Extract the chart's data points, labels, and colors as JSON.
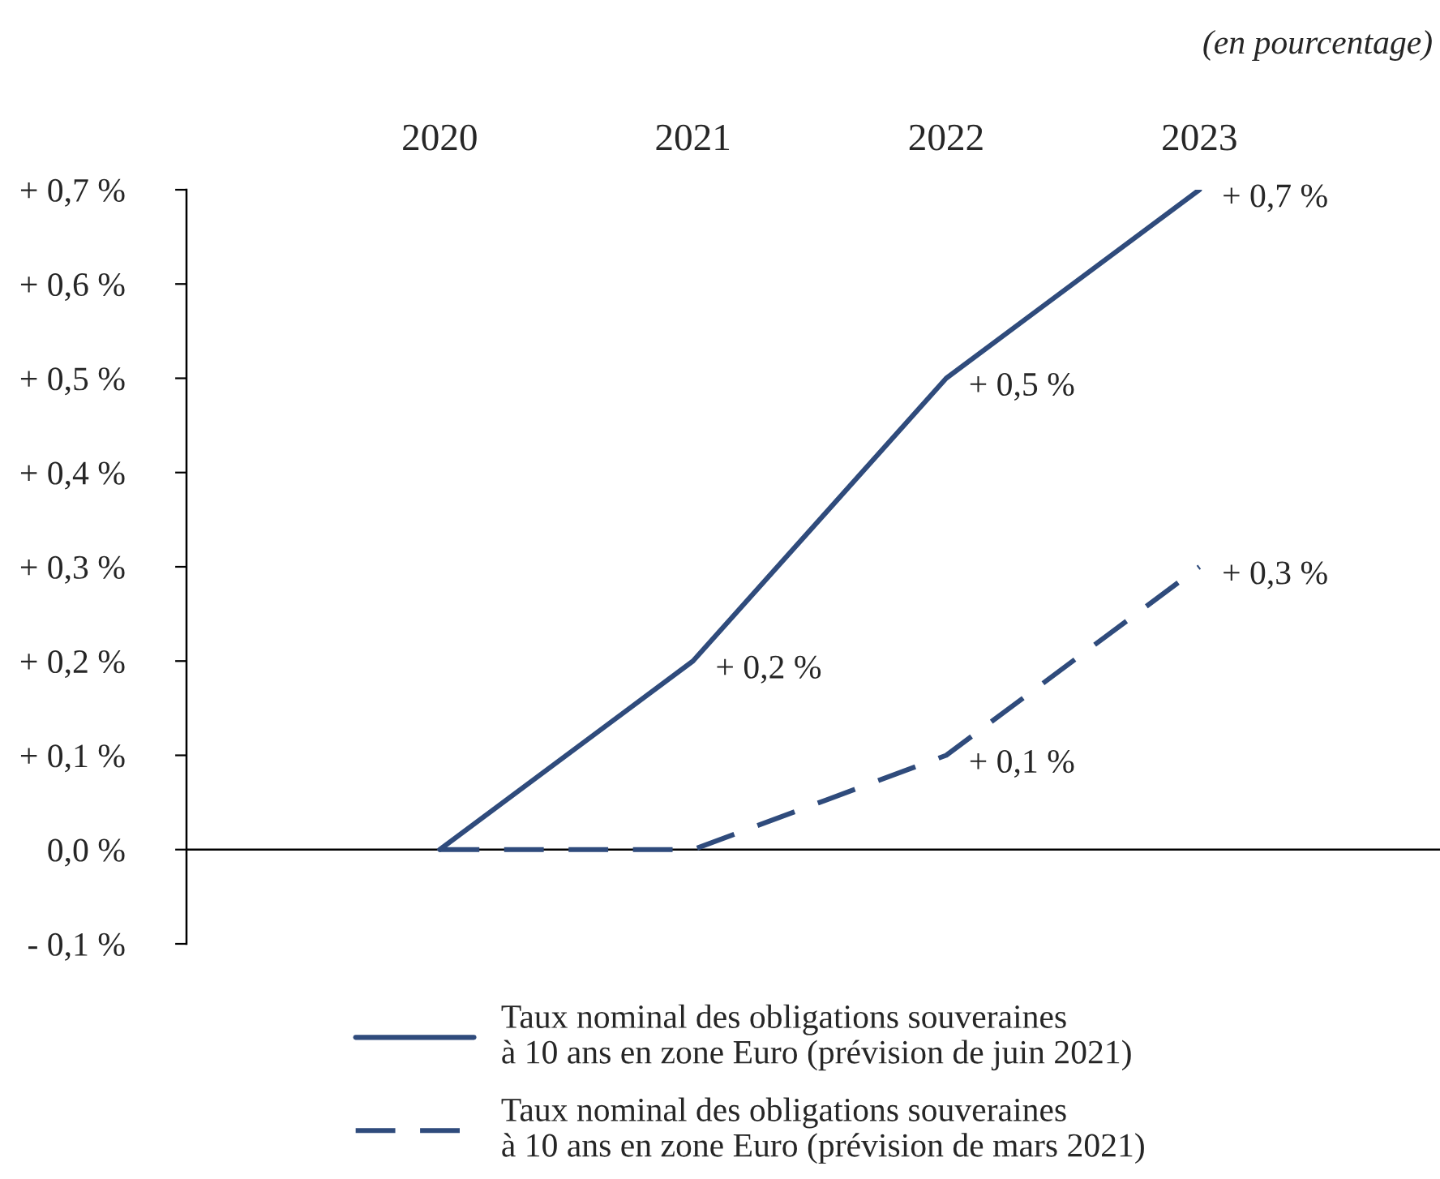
{
  "chart_data": {
    "type": "line",
    "annotations": [
      "(en pourcentage)"
    ],
    "categories": [
      "2020",
      "2021",
      "2022",
      "2023"
    ],
    "series": [
      {
        "name": "Taux nominal des obligations souveraines\nà 10 ans en zone Euro (prévision de juin 2021)",
        "color": "#2f4b7c",
        "values": [
          0,
          0.2,
          0.5,
          0.7
        ],
        "line_style": "solid",
        "value_labels": [
          null,
          "+ 0,2 %",
          "+ 0,5 %",
          "+ 0,7 %"
        ]
      },
      {
        "name": "Taux nominal des obligations souveraines\nà 10 ans en zone Euro (prévision de mars 2021)",
        "color": "#2f4b7c",
        "values": [
          0,
          0,
          0.1,
          0.3
        ],
        "line_style": "dashed",
        "value_labels": [
          null,
          null,
          "+ 0,1 %",
          "+ 0,3 %"
        ]
      }
    ],
    "ylim": [
      -0.1,
      0.7
    ],
    "yticks": [
      {
        "value": -0.1,
        "label": "- 0,1 %"
      },
      {
        "value": 0,
        "label": "0,0 %"
      },
      {
        "value": 0.1,
        "label": "+ 0,1 %"
      },
      {
        "value": 0.2,
        "label": "+ 0,2 %"
      },
      {
        "value": 0.3,
        "label": "+ 0,3 %"
      },
      {
        "value": 0.4,
        "label": "+ 0,4 %"
      },
      {
        "value": 0.5,
        "label": "+ 0,5 %"
      },
      {
        "value": 0.6,
        "label": "+ 0,6 %"
      },
      {
        "value": 0.7,
        "label": "+ 0,7 %"
      }
    ],
    "grid": false,
    "ref_lines": [
      {
        "axis": "y",
        "value": 0,
        "color": "#000000"
      }
    ],
    "legend": "bottom",
    "marker": "none"
  }
}
